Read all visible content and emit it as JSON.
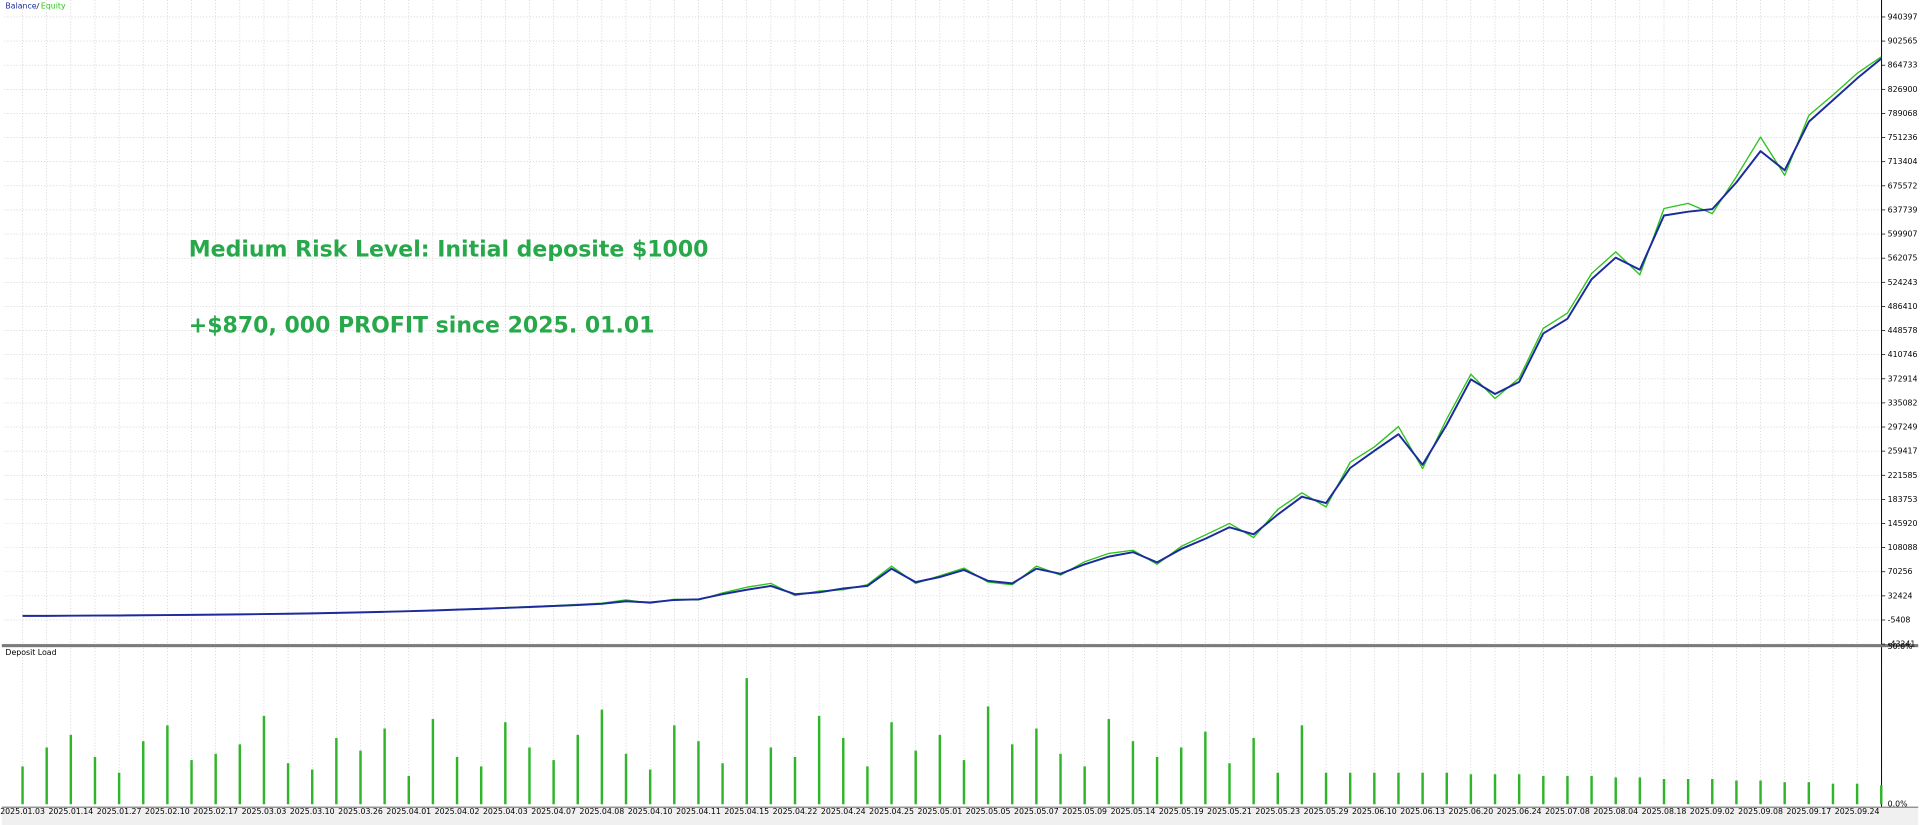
{
  "chart_data": [
    {
      "type": "line",
      "legend": "top-left",
      "annotations": [
        "Medium Risk Level: Initial deposite $1000",
        "+$870, 000 PROFIT since 2025. 01.01"
      ],
      "ylim": [
        -43241,
        967000
      ],
      "yticks": [
        940397,
        902565,
        864733,
        826900,
        789068,
        751236,
        713404,
        675572,
        637739,
        599907,
        562075,
        524243,
        486410,
        448578,
        410746,
        372914,
        335082,
        297249,
        259417,
        221585,
        183753,
        145920,
        108088,
        70256,
        32424,
        -5408,
        -43241
      ],
      "grid": true,
      "series": [
        {
          "name": "Balance",
          "color": "#1b2a9c",
          "values": [
            1000,
            1100,
            1300,
            1500,
            1700,
            2000,
            2300,
            2600,
            3000,
            3400,
            3900,
            4400,
            5000,
            5700,
            6500,
            7400,
            8400,
            9500,
            10800,
            12000,
            13500,
            15000,
            16500,
            18000,
            20000,
            24000,
            22000,
            26000,
            27000,
            35000,
            42000,
            48000,
            35000,
            38000,
            44000,
            48000,
            75000,
            54000,
            62000,
            73000,
            56000,
            52000,
            75000,
            67000,
            82000,
            94000,
            101000,
            85000,
            106000,
            122000,
            140000,
            129000,
            160000,
            188000,
            178000,
            233000,
            260000,
            286000,
            238000,
            301000,
            372000,
            349000,
            368000,
            444000,
            467000,
            529000,
            563000,
            544000,
            629000,
            635000,
            639000,
            681000,
            730000,
            700000,
            776000,
            810000,
            844000,
            875000
          ]
        },
        {
          "name": "Equity",
          "color": "#2bc41a",
          "values": [
            1000,
            1100,
            1300,
            1500,
            1700,
            2000,
            2300,
            2600,
            3000,
            3400,
            3900,
            4400,
            5000,
            5700,
            6500,
            7400,
            8400,
            9500,
            10800,
            12500,
            14000,
            15500,
            17000,
            19000,
            21000,
            26000,
            21000,
            27000,
            26000,
            37000,
            46000,
            52000,
            33000,
            40000,
            42000,
            50000,
            79000,
            52000,
            64000,
            76000,
            54000,
            50000,
            79000,
            65000,
            86000,
            99000,
            104000,
            82000,
            110000,
            128000,
            146000,
            124000,
            168000,
            194000,
            172000,
            242000,
            266000,
            298000,
            232000,
            310000,
            380000,
            342000,
            374000,
            452000,
            476000,
            538000,
            572000,
            536000,
            640000,
            648000,
            632000,
            690000,
            752000,
            692000,
            786000,
            818000,
            852000,
            878000
          ]
        }
      ]
    },
    {
      "type": "bar",
      "title": "Deposit Load",
      "color": "#2fb52a",
      "ylim": [
        0,
        50
      ],
      "yticks": [
        {
          "value": 50,
          "label": "50.0%"
        },
        {
          "value": 0,
          "label": "0.0%"
        }
      ],
      "categories": [
        "2025.01.03",
        null,
        "2025.01.14",
        null,
        "2025.01.27",
        null,
        "2025.02.10",
        null,
        "2025.02.17",
        null,
        "2025.03.03",
        null,
        "2025.03.10",
        null,
        "2025.03.26",
        null,
        "2025.04.01",
        null,
        "2025.04.02",
        null,
        "2025.04.03",
        null,
        "2025.04.07",
        null,
        "2025.04.08",
        null,
        "2025.04.10",
        null,
        "2025.04.11",
        null,
        "2025.04.15",
        null,
        "2025.04.22",
        null,
        "2025.04.24",
        null,
        "2025.04.25",
        null,
        "2025.05.01",
        null,
        "2025.05.05",
        null,
        "2025.05.07",
        null,
        "2025.05.09",
        null,
        "2025.05.14",
        null,
        "2025.05.19",
        null,
        "2025.05.21",
        null,
        "2025.05.23",
        null,
        "2025.05.29",
        null,
        "2025.06.10",
        null,
        "2025.06.13",
        null,
        "2025.06.20",
        null,
        "2025.06.24",
        null,
        "2025.07.08",
        null,
        "2025.08.04",
        null,
        "2025.08.18",
        null,
        "2025.09.02",
        null,
        "2025.09.08",
        null,
        "2025.09.17",
        null,
        "2025.09.24",
        null
      ],
      "values": [
        12,
        18,
        22,
        15,
        10,
        20,
        25,
        14,
        16,
        19,
        28,
        13,
        11,
        21,
        17,
        24,
        9,
        27,
        15,
        12,
        26,
        18,
        14,
        22,
        30,
        16,
        11,
        25,
        20,
        13,
        40,
        18,
        15,
        28,
        21,
        12,
        26,
        17,
        22,
        14,
        31,
        19,
        24,
        16,
        12,
        27,
        20,
        15,
        18,
        23,
        13,
        21,
        10,
        25,
        10,
        10,
        10,
        10,
        10,
        10,
        9.5,
        9.5,
        9.5,
        9,
        9,
        9,
        8.5,
        8.5,
        8,
        8,
        8,
        7.5,
        7.5,
        7,
        7,
        6.5,
        6.5,
        6
      ]
    }
  ]
}
